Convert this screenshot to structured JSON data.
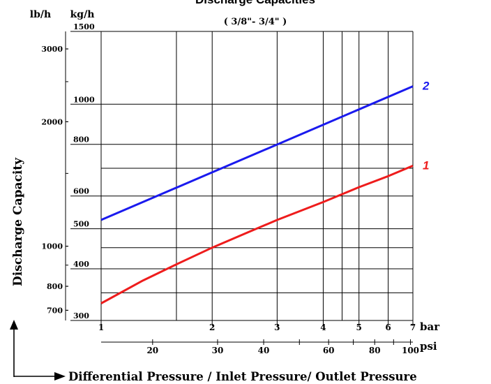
{
  "chart_data": {
    "type": "line",
    "title": "Discharge Capacities",
    "subtitle": "( 3/8\"- 3/4\" )",
    "ylabel": "Discharge Capacity",
    "xlabel": "Differential Pressure / Inlet Pressure/ Outlet Pressure",
    "x_scale": "log",
    "y_scale": "log",
    "xlim": [
      1,
      7
    ],
    "ylim": [
      300,
      1500
    ],
    "x_unit_primary": "bar",
    "x_unit_secondary": "psi",
    "y_unit_primary": "kg/h",
    "y_unit_secondary": "lb/h",
    "x_ticks_bar": [
      1,
      2,
      3,
      4,
      5,
      6,
      7
    ],
    "x_tick_labels_bar": [
      "1",
      "2",
      "3",
      "4",
      "5",
      "6",
      "7"
    ],
    "x_ticks_psi": [
      20,
      30,
      40,
      50,
      60,
      70,
      80,
      90,
      100
    ],
    "x_tick_labels_psi": [
      "20",
      "30",
      "40",
      "",
      "60",
      "",
      "80",
      "",
      "100"
    ],
    "x_extra_gridlines_bar": [
      1.6,
      4.5
    ],
    "y_ticks_kgh": [
      300,
      400,
      500,
      600,
      800,
      1000,
      1500
    ],
    "y_tick_labels_kgh": [
      "300",
      "400",
      "500",
      "600",
      "800",
      "1000",
      "1500"
    ],
    "y_extra_gridlines_kgh": [
      350,
      450,
      700
    ],
    "y_ticks_lbh": [
      700,
      800,
      1000,
      2000,
      3000
    ],
    "y_tick_labels_lbh": [
      "700",
      "800",
      "1000",
      "2000",
      "3000"
    ],
    "y_minor_ticks_lbh": [
      900,
      1500,
      2500
    ],
    "series": [
      {
        "name": "1",
        "color": "#ee1c1c",
        "x": [
          1,
          1.3,
          1.6,
          2,
          2.5,
          3,
          4,
          5,
          6,
          7
        ],
        "y": [
          330,
          375,
          410,
          450,
          490,
          525,
          580,
          630,
          670,
          710
        ]
      },
      {
        "name": "2",
        "color": "#1a1aee",
        "x": [
          1,
          7
        ],
        "y": [
          525,
          1105
        ]
      }
    ],
    "grid": true,
    "legend": "end-of-line labels"
  }
}
